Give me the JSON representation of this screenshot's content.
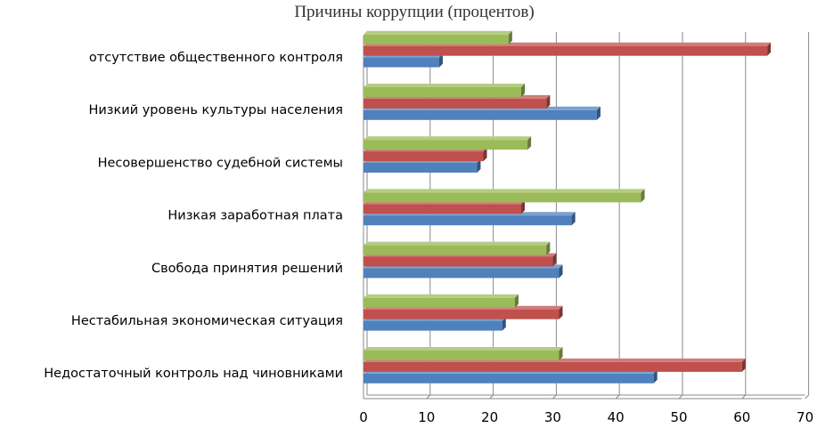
{
  "chart_data": {
    "type": "bar",
    "orientation": "horizontal",
    "title": "Причины коррупции (процентов)",
    "xlabel": "",
    "ylabel": "",
    "categories": [
      "отсутствие общественного контроля",
      "Низкий уровень культуры населения",
      "Несовершенство судебной системы",
      "Низкая заработная плата",
      "Свобода принятия решений",
      "Нестабильная экономическая ситуация",
      "Недостаточный контроль над чиновниками"
    ],
    "series": [
      {
        "color": "#4f81bd",
        "values": [
          12,
          37,
          18,
          33,
          31,
          22,
          46
        ]
      },
      {
        "color": "#c0504d",
        "values": [
          64,
          29,
          19,
          25,
          30,
          31,
          60
        ]
      },
      {
        "color": "#9bbb59",
        "values": [
          23,
          25,
          26,
          44,
          29,
          24,
          31
        ]
      }
    ],
    "xlim": [
      0,
      70
    ],
    "xticks": [
      "0",
      "10",
      "20",
      "30",
      "40",
      "50",
      "60",
      "70"
    ],
    "grid": true,
    "legend": "none",
    "style": "3d-clustered-bar"
  }
}
